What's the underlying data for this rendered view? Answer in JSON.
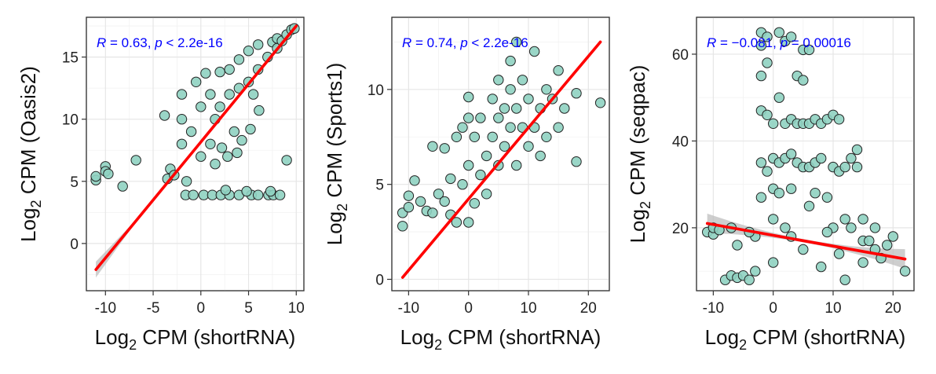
{
  "colors": {
    "point_fill": "#8fd1c1",
    "point_edge": "#222222",
    "fit_line": "#ff0000",
    "confidence_band": "#bdbdbd",
    "annotation": "#0000ff"
  },
  "chart_data": [
    {
      "type": "scatter",
      "title": "",
      "xlabel": "Log2 CPM (shortRNA)",
      "ylabel": "Log2 CPM (Oasis2)",
      "xlim": [
        -12,
        10.8
      ],
      "ylim": [
        -3.8,
        18.2
      ],
      "xticks": [
        -10,
        -5,
        0,
        5,
        10
      ],
      "yticks": [
        0,
        5,
        10,
        15
      ],
      "annotation": {
        "r": "0.63",
        "p": "2.2e-16",
        "p_op": "<"
      },
      "fit": {
        "x": [
          -11,
          10
        ],
        "y": [
          -2.1,
          17.5
        ],
        "band": "lower-left"
      },
      "points": [
        [
          -11,
          5.1
        ],
        [
          -11,
          5.4
        ],
        [
          -10,
          6.2
        ],
        [
          -10,
          5.8
        ],
        [
          -9.7,
          5.6
        ],
        [
          -8.2,
          4.6
        ],
        [
          -6.8,
          6.7
        ],
        [
          -3.8,
          10.3
        ],
        [
          -3.5,
          5.2
        ],
        [
          -3.2,
          6.0
        ],
        [
          -2.8,
          5.5
        ],
        [
          -2,
          8
        ],
        [
          -2,
          10
        ],
        [
          -2,
          12
        ],
        [
          -1.5,
          5
        ],
        [
          -1,
          9
        ],
        [
          -0.5,
          13
        ],
        [
          0,
          7
        ],
        [
          0,
          11
        ],
        [
          0.5,
          13.7
        ],
        [
          1,
          8
        ],
        [
          1,
          12
        ],
        [
          1.5,
          10
        ],
        [
          2,
          11
        ],
        [
          2,
          13.8
        ],
        [
          3,
          12
        ],
        [
          3,
          14
        ],
        [
          3.5,
          9
        ],
        [
          4,
          12.5
        ],
        [
          4,
          14.8
        ],
        [
          5,
          13
        ],
        [
          5,
          15.5
        ],
        [
          5.5,
          12
        ],
        [
          6,
          14
        ],
        [
          6,
          16
        ],
        [
          7,
          15
        ],
        [
          7.5,
          16.2
        ],
        [
          8,
          15.7
        ],
        [
          8,
          16.5
        ],
        [
          8.5,
          16.3
        ],
        [
          9,
          16.8
        ],
        [
          9.5,
          17.2
        ],
        [
          9.8,
          17.3
        ],
        [
          4.3,
          8.3
        ],
        [
          2.2,
          7.7
        ],
        [
          3.8,
          7.3
        ],
        [
          1.5,
          6.4
        ],
        [
          2.8,
          7.0
        ],
        [
          5.2,
          9.2
        ],
        [
          6.1,
          10.7
        ],
        [
          9.0,
          6.7
        ],
        [
          -1.6,
          3.9
        ],
        [
          -0.8,
          3.9
        ],
        [
          0.3,
          3.9
        ],
        [
          1.2,
          3.9
        ],
        [
          2.1,
          3.9
        ],
        [
          3.0,
          3.9
        ],
        [
          4.0,
          3.9
        ],
        [
          5.3,
          3.9
        ],
        [
          6.0,
          3.9
        ],
        [
          7.1,
          3.9
        ],
        [
          7.6,
          3.9
        ],
        [
          8.3,
          3.9
        ],
        [
          7.3,
          4.2
        ],
        [
          4.8,
          4.2
        ],
        [
          2.6,
          4.3
        ]
      ]
    },
    {
      "type": "scatter",
      "title": "",
      "xlabel": "Log2 CPM (shortRNA)",
      "ylabel": "Log2 CPM (Sports1)",
      "xlim": [
        -12.8,
        23.5
      ],
      "ylim": [
        -0.6,
        13.8
      ],
      "xticks": [
        -10,
        0,
        10,
        20
      ],
      "yticks": [
        0,
        5,
        10
      ],
      "annotation": {
        "r": "0.74",
        "p": "2.2e-16",
        "p_op": "<"
      },
      "fit": {
        "x": [
          -11,
          22
        ],
        "y": [
          0.1,
          12.5
        ],
        "band": "none"
      },
      "points": [
        [
          -11,
          2.8
        ],
        [
          -11,
          3.5
        ],
        [
          -10,
          3.8
        ],
        [
          -10,
          4.4
        ],
        [
          -9,
          5.2
        ],
        [
          -8,
          4.1
        ],
        [
          -7,
          3.6
        ],
        [
          -6,
          7.0
        ],
        [
          -6,
          3.5
        ],
        [
          -5,
          4.5
        ],
        [
          -4,
          4.1
        ],
        [
          -4,
          6.9
        ],
        [
          -3,
          5.3
        ],
        [
          -3,
          3.4
        ],
        [
          -2,
          7.5
        ],
        [
          -2,
          3.0
        ],
        [
          -1,
          8.0
        ],
        [
          -1,
          5.0
        ],
        [
          0,
          6.0
        ],
        [
          0,
          8.5
        ],
        [
          0,
          3.0
        ],
        [
          0,
          9.6
        ],
        [
          1,
          4.0
        ],
        [
          1,
          7.5
        ],
        [
          2,
          5.5
        ],
        [
          2,
          8.5
        ],
        [
          3,
          6.5
        ],
        [
          3,
          4.5
        ],
        [
          4,
          7.5
        ],
        [
          4,
          9.5
        ],
        [
          5,
          6.0
        ],
        [
          5,
          8.5
        ],
        [
          5,
          10.5
        ],
        [
          6,
          7.0
        ],
        [
          6,
          9.0
        ],
        [
          7,
          8.0
        ],
        [
          7,
          10.0
        ],
        [
          7,
          11.5
        ],
        [
          8,
          6.0
        ],
        [
          8,
          9.0
        ],
        [
          8,
          12.5
        ],
        [
          9,
          8.0
        ],
        [
          9,
          10.5
        ],
        [
          10,
          7.0
        ],
        [
          10,
          9.5
        ],
        [
          11,
          8.0
        ],
        [
          11,
          12.0
        ],
        [
          12,
          9.0
        ],
        [
          12,
          6.5
        ],
        [
          13,
          10.0
        ],
        [
          13,
          7.5
        ],
        [
          14,
          9.5
        ],
        [
          15,
          8.0
        ],
        [
          15,
          11.0
        ],
        [
          16,
          9.0
        ],
        [
          18,
          6.2
        ],
        [
          18,
          9.8
        ],
        [
          22,
          9.3
        ]
      ]
    },
    {
      "type": "scatter",
      "title": "",
      "xlabel": "Log2 CPM (shortRNA)",
      "ylabel": "Log2 CPM (seqpac)",
      "xlim": [
        -12.8,
        23.5
      ],
      "ylim": [
        5.5,
        68.5
      ],
      "xticks": [
        -10,
        0,
        10,
        20
      ],
      "yticks": [
        20,
        40,
        60
      ],
      "annotation": {
        "r": "−0.081",
        "p": "0.00016",
        "p_op": "="
      },
      "fit": {
        "x": [
          -11,
          22
        ],
        "y": [
          21.0,
          12.8
        ],
        "band": "both"
      },
      "points": [
        [
          -11,
          19
        ],
        [
          -10,
          18.5
        ],
        [
          -10,
          20
        ],
        [
          -9,
          19.5
        ],
        [
          -8,
          8
        ],
        [
          -7,
          9
        ],
        [
          -7,
          20
        ],
        [
          -6,
          8.5
        ],
        [
          -5,
          9
        ],
        [
          -4,
          8
        ],
        [
          -3,
          10
        ],
        [
          -3,
          18
        ],
        [
          -2,
          65
        ],
        [
          -2,
          62
        ],
        [
          -2,
          55
        ],
        [
          -2,
          47
        ],
        [
          -2,
          35
        ],
        [
          -2,
          27
        ],
        [
          -1,
          64
        ],
        [
          -1,
          58
        ],
        [
          -1,
          46
        ],
        [
          -1,
          33
        ],
        [
          0,
          44
        ],
        [
          0,
          36
        ],
        [
          0,
          29
        ],
        [
          0,
          22
        ],
        [
          0,
          12
        ],
        [
          1,
          65
        ],
        [
          1,
          50
        ],
        [
          1,
          35
        ],
        [
          1,
          28
        ],
        [
          2,
          63
        ],
        [
          2,
          44
        ],
        [
          2,
          36
        ],
        [
          2,
          20
        ],
        [
          3,
          64
        ],
        [
          3,
          45
        ],
        [
          3,
          37
        ],
        [
          3,
          29
        ],
        [
          4,
          55
        ],
        [
          4,
          44
        ],
        [
          4,
          35
        ],
        [
          5,
          61
        ],
        [
          5,
          54
        ],
        [
          5,
          44
        ],
        [
          5,
          34
        ],
        [
          6,
          61
        ],
        [
          6,
          44
        ],
        [
          6,
          34
        ],
        [
          7,
          45
        ],
        [
          7,
          35
        ],
        [
          7,
          28
        ],
        [
          8,
          44
        ],
        [
          8,
          36
        ],
        [
          9,
          45
        ],
        [
          9,
          27
        ],
        [
          10,
          46
        ],
        [
          10,
          34
        ],
        [
          10,
          20
        ],
        [
          11,
          45
        ],
        [
          11,
          33
        ],
        [
          12,
          34
        ],
        [
          12,
          22
        ],
        [
          13,
          36
        ],
        [
          13,
          20
        ],
        [
          14,
          38
        ],
        [
          14,
          34
        ],
        [
          15,
          22
        ],
        [
          15,
          17
        ],
        [
          16,
          17
        ],
        [
          17,
          15
        ],
        [
          18,
          13
        ],
        [
          19,
          16
        ],
        [
          20,
          18
        ],
        [
          22,
          10
        ],
        [
          15,
          12
        ],
        [
          12,
          8
        ],
        [
          8,
          11
        ],
        [
          5,
          15
        ],
        [
          3,
          18
        ],
        [
          -4,
          19
        ],
        [
          -6,
          16
        ],
        [
          17,
          20
        ],
        [
          6,
          25
        ],
        [
          9,
          19
        ],
        [
          11,
          14
        ]
      ]
    }
  ]
}
